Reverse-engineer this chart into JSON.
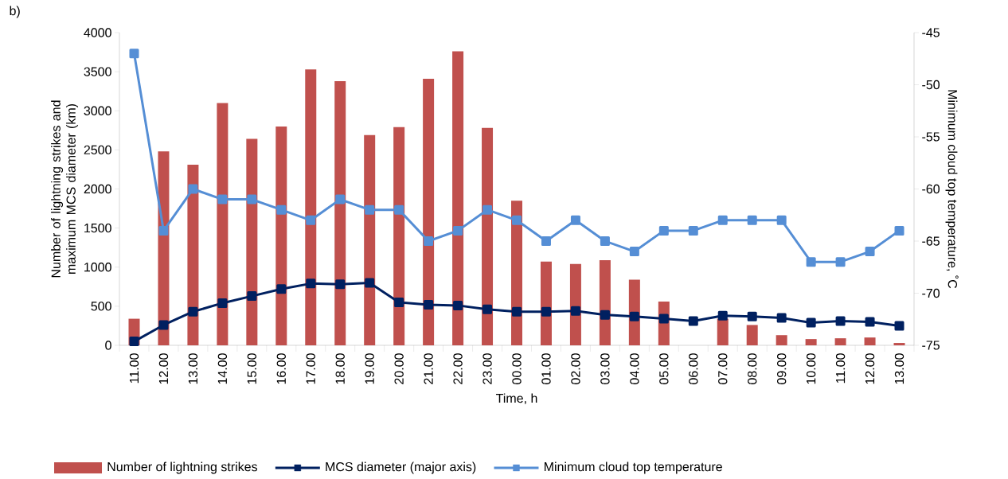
{
  "chart_data": {
    "type": "bar",
    "title": "b)",
    "xlabel": "Time, h",
    "ylabel": "Number of lightning strikes and maximum MCS diameter (km)",
    "y2label": "Minimum cloud top temperature, ˚C",
    "categories": [
      "11.00",
      "12.00",
      "13.00",
      "14.00",
      "15.00",
      "16.00",
      "17.00",
      "18.00",
      "19.00",
      "20.00",
      "21.00",
      "22.00",
      "23.00",
      "00.00",
      "01.00",
      "02.00",
      "03.00",
      "04.00",
      "05.00",
      "06.00",
      "07.00",
      "08.00",
      "09.00",
      "10.00",
      "11.00",
      "12.00",
      "13.00"
    ],
    "series": [
      {
        "name": "Number of lightning strikes",
        "color": "#c0504d",
        "values": [
          340,
          2480,
          2310,
          3100,
          2640,
          2800,
          3530,
          3380,
          2690,
          2790,
          3410,
          3760,
          2780,
          1850,
          1070,
          1040,
          1090,
          840,
          560,
          null,
          340,
          260,
          130,
          80,
          90,
          100,
          30
        ]
      },
      {
        "name": "MCS diameter (major axis)",
        "type": "line",
        "color": "#002060",
        "values": [
          50,
          260,
          430,
          540,
          630,
          720,
          790,
          780,
          800,
          550,
          520,
          510,
          460,
          430,
          430,
          440,
          390,
          370,
          340,
          310,
          380,
          370,
          350,
          290,
          310,
          300,
          250
        ]
      },
      {
        "name": "Minimum cloud top temperature",
        "type": "line",
        "color": "#558ed5",
        "axis": "y2",
        "values": [
          -47,
          -64,
          -60,
          -61,
          -61,
          -62,
          -63,
          -61,
          -62,
          -62,
          -65,
          -64,
          -62,
          -63,
          -65,
          -63,
          -65,
          -66,
          -64,
          -64,
          -63,
          -63,
          -63,
          -67,
          -67,
          -66,
          -64
        ]
      }
    ],
    "ylim": [
      0,
      4000
    ],
    "yticks": [
      0,
      500,
      1000,
      1500,
      2000,
      2500,
      3000,
      3500,
      4000
    ],
    "y2lim": [
      -75,
      -45
    ],
    "y2ticks": [
      -75,
      -70,
      -65,
      -60,
      -55,
      -50,
      -45
    ],
    "legend": "bottom",
    "marker": "square"
  }
}
